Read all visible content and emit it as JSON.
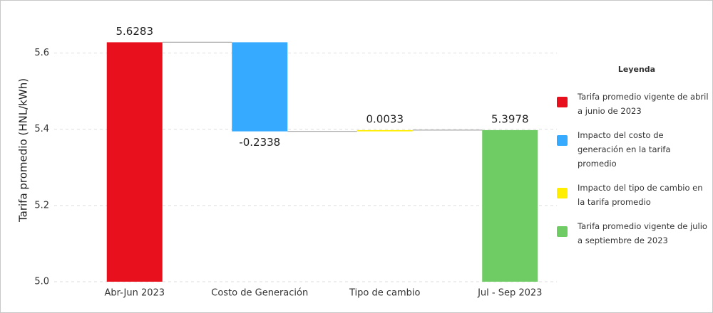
{
  "chart_data": {
    "type": "waterfall",
    "y_label": "Tarifa promedio (HNL/kWh)",
    "categories": [
      "Abr-Jun 2023",
      "Costo de Generación",
      "Tipo de cambio",
      "Jul - Sep 2023"
    ],
    "values": [
      5.6283,
      -0.2338,
      0.0033,
      5.3978
    ],
    "is_total": [
      true,
      false,
      false,
      true
    ],
    "ylim": [
      5.0,
      5.7
    ],
    "yticks": [
      {
        "value": 5,
        "label": "5.0"
      },
      5.2,
      5.4,
      5.6
    ],
    "grid": true,
    "legend": {
      "title": "Leyenda",
      "position": "right",
      "items": [
        {
          "name": "Tarifa promedio vigente de abril a junio de 2023",
          "color": "#e8101c"
        },
        {
          "name": "Impacto del costo de generación en la tarifa promedio",
          "color": "#36aaff"
        },
        {
          "name": "Impacto del tipo de cambio en la tarifa promedio",
          "color": "#ffee00"
        },
        {
          "name": "Tarifa promedio vigente de julio a septiembre de 2023",
          "color": "#6fcc64"
        }
      ]
    }
  }
}
